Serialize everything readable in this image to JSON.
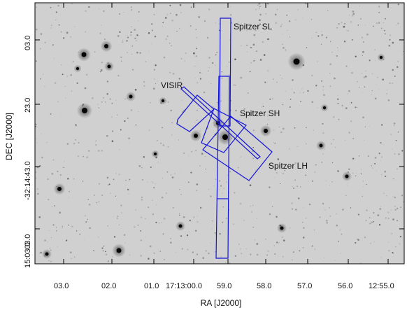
{
  "figure": {
    "xlabel": "RA [J2000]",
    "ylabel": "DEC [J2000]",
    "x_ticks": [
      "03.0",
      "02.0",
      "01.0",
      "17:13:00.0",
      "59.0",
      "58.0",
      "57.0",
      "56.0",
      "12:55.0"
    ],
    "y_ticks": [
      "03.0",
      "23.0",
      "-32:14:43.0",
      "03.0",
      "15:03.0"
    ],
    "apertures": [
      {
        "name": "spitzer-sl",
        "label": "Spitzer SL"
      },
      {
        "name": "spitzer-sh",
        "label": "Spitzer SH"
      },
      {
        "name": "spitzer-lh",
        "label": "Spitzer LH"
      },
      {
        "name": "visir",
        "label": "VISIR"
      }
    ],
    "aperture_color": "#1414d8"
  }
}
